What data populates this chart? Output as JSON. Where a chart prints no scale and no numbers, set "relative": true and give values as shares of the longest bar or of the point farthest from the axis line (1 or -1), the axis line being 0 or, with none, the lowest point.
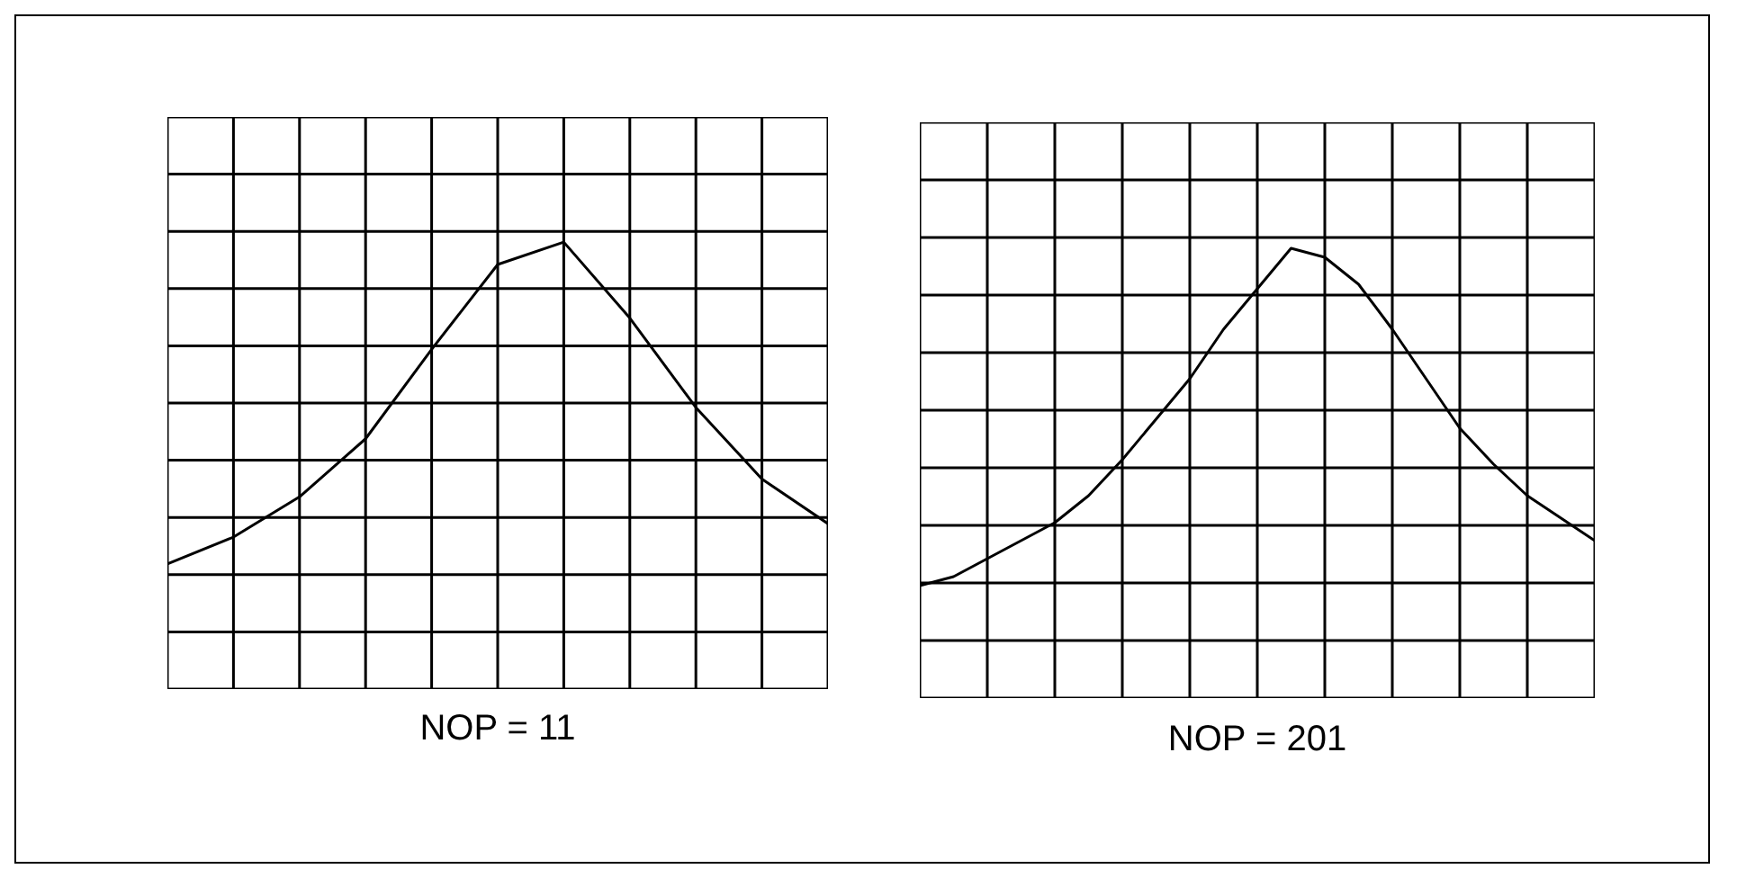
{
  "chart_data": [
    {
      "type": "line",
      "relative": true,
      "grid": true,
      "xlabel": "NOP = 11",
      "categories": [
        null,
        null,
        null,
        null,
        null,
        null,
        null,
        null,
        null,
        null,
        null
      ],
      "series": [
        {
          "color": "#000000",
          "values": [
            0.28,
            0.34,
            0.43,
            0.56,
            0.76,
            0.95,
            1,
            0.83,
            0.63,
            0.47,
            0.37
          ]
        }
      ]
    },
    {
      "type": "line",
      "relative": true,
      "grid": true,
      "xlabel": "NOP = 201",
      "categories": [
        null,
        null,
        null,
        null,
        null,
        null,
        null,
        null,
        null,
        null,
        null,
        null,
        null,
        null,
        null,
        null,
        null,
        null,
        null,
        null,
        null
      ],
      "series": [
        {
          "color": "#000000",
          "values": [
            0.25,
            0.27,
            0.31,
            0.35,
            0.39,
            0.45,
            0.53,
            0.62,
            0.71,
            0.82,
            0.91,
            1.0,
            0.98,
            0.92,
            0.82,
            0.71,
            0.6,
            0.52,
            0.45,
            0.4,
            0.35
          ]
        }
      ]
    }
  ]
}
